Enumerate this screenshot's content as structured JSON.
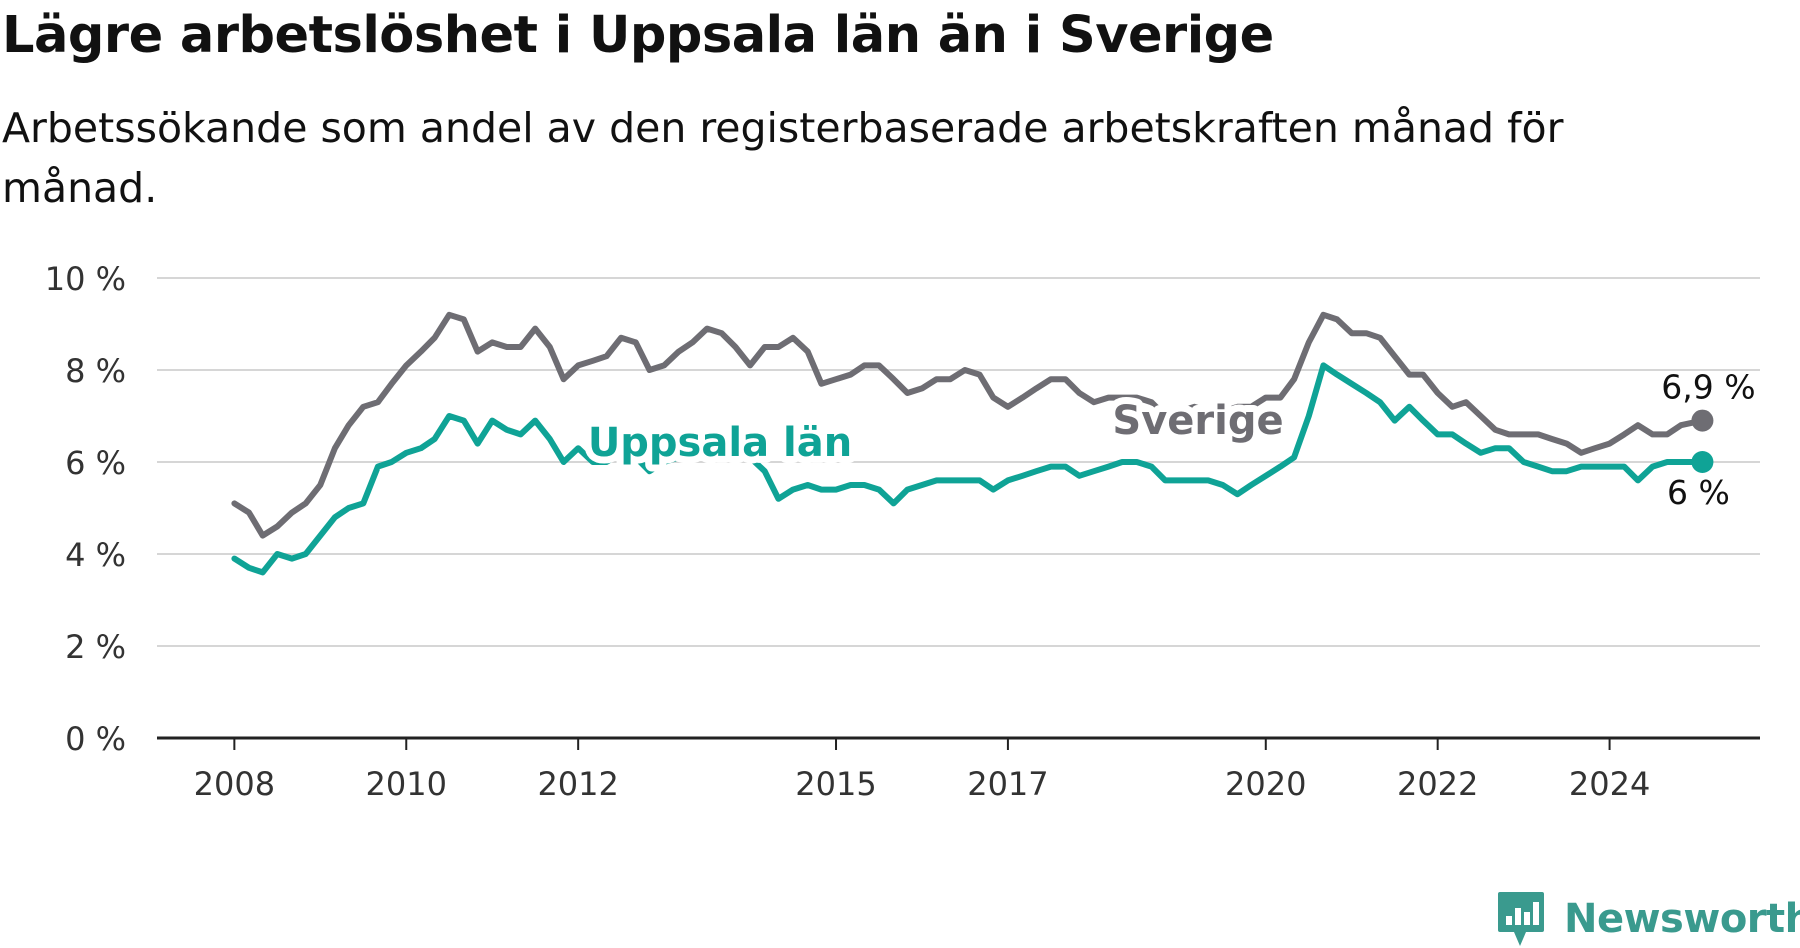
{
  "title": "Lägre arbetslöshet i Uppsala län än i Sverige",
  "subtitle": "Arbetssökande som andel av den registerbaserade arbetskraften månad för månad.",
  "brand": {
    "name": "Newsworthy",
    "icon": "newsworthy-logo-icon"
  },
  "colors": {
    "sverige": "#6e6d73",
    "uppsala": "#0fa396",
    "grid": "#d6d6d6",
    "axis": "#222222"
  },
  "chart_data": {
    "type": "line",
    "y_ticks": [
      "0 %",
      "2 %",
      "4 %",
      "6 %",
      "8 %",
      "10 %"
    ],
    "y_tick_values": [
      0,
      2,
      4,
      6,
      8,
      10
    ],
    "ylim": [
      0,
      10
    ],
    "x_ticks": [
      "2008",
      "2010",
      "2012",
      "2015",
      "2017",
      "2020",
      "2022",
      "2024"
    ],
    "x_tick_values": [
      2008,
      2010,
      2012,
      2015,
      2017,
      2020,
      2022,
      2024
    ],
    "xlim": [
      2007.1,
      2025.75
    ],
    "grid": true,
    "series": [
      {
        "name": "Sverige",
        "end_label": "6,9 %",
        "points": [
          [
            2008.0,
            5.1
          ],
          [
            2008.17,
            4.9
          ],
          [
            2008.33,
            4.4
          ],
          [
            2008.5,
            4.6
          ],
          [
            2008.67,
            4.9
          ],
          [
            2008.83,
            5.1
          ],
          [
            2009.0,
            5.5
          ],
          [
            2009.17,
            6.3
          ],
          [
            2009.33,
            6.8
          ],
          [
            2009.5,
            7.2
          ],
          [
            2009.67,
            7.3
          ],
          [
            2009.83,
            7.7
          ],
          [
            2010.0,
            8.1
          ],
          [
            2010.17,
            8.4
          ],
          [
            2010.33,
            8.7
          ],
          [
            2010.5,
            9.2
          ],
          [
            2010.67,
            9.1
          ],
          [
            2010.83,
            8.4
          ],
          [
            2011.0,
            8.6
          ],
          [
            2011.17,
            8.5
          ],
          [
            2011.33,
            8.5
          ],
          [
            2011.5,
            8.9
          ],
          [
            2011.67,
            8.5
          ],
          [
            2011.83,
            7.8
          ],
          [
            2012.0,
            8.1
          ],
          [
            2012.17,
            8.2
          ],
          [
            2012.33,
            8.3
          ],
          [
            2012.5,
            8.7
          ],
          [
            2012.67,
            8.6
          ],
          [
            2012.83,
            8.0
          ],
          [
            2013.0,
            8.1
          ],
          [
            2013.17,
            8.4
          ],
          [
            2013.33,
            8.6
          ],
          [
            2013.5,
            8.9
          ],
          [
            2013.67,
            8.8
          ],
          [
            2013.83,
            8.5
          ],
          [
            2014.0,
            8.1
          ],
          [
            2014.17,
            8.5
          ],
          [
            2014.33,
            8.5
          ],
          [
            2014.5,
            8.7
          ],
          [
            2014.67,
            8.4
          ],
          [
            2014.83,
            7.7
          ],
          [
            2015.0,
            7.8
          ],
          [
            2015.17,
            7.9
          ],
          [
            2015.33,
            8.1
          ],
          [
            2015.5,
            8.1
          ],
          [
            2015.67,
            7.8
          ],
          [
            2015.83,
            7.5
          ],
          [
            2016.0,
            7.6
          ],
          [
            2016.17,
            7.8
          ],
          [
            2016.33,
            7.8
          ],
          [
            2016.5,
            8.0
          ],
          [
            2016.67,
            7.9
          ],
          [
            2016.83,
            7.4
          ],
          [
            2017.0,
            7.2
          ],
          [
            2017.17,
            7.4
          ],
          [
            2017.33,
            7.6
          ],
          [
            2017.5,
            7.8
          ],
          [
            2017.67,
            7.8
          ],
          [
            2017.83,
            7.5
          ],
          [
            2018.0,
            7.3
          ],
          [
            2018.17,
            7.4
          ],
          [
            2018.33,
            7.4
          ],
          [
            2018.5,
            7.4
          ],
          [
            2018.67,
            7.3
          ],
          [
            2018.83,
            7.0
          ],
          [
            2019.0,
            7.1
          ],
          [
            2019.17,
            7.2
          ],
          [
            2019.33,
            7.1
          ],
          [
            2019.5,
            7.1
          ],
          [
            2019.67,
            7.2
          ],
          [
            2019.83,
            7.2
          ],
          [
            2020.0,
            7.4
          ],
          [
            2020.17,
            7.4
          ],
          [
            2020.33,
            7.8
          ],
          [
            2020.5,
            8.6
          ],
          [
            2020.67,
            9.2
          ],
          [
            2020.83,
            9.1
          ],
          [
            2021.0,
            8.8
          ],
          [
            2021.17,
            8.8
          ],
          [
            2021.33,
            8.7
          ],
          [
            2021.5,
            8.3
          ],
          [
            2021.67,
            7.9
          ],
          [
            2021.83,
            7.9
          ],
          [
            2022.0,
            7.5
          ],
          [
            2022.17,
            7.2
          ],
          [
            2022.33,
            7.3
          ],
          [
            2022.5,
            7.0
          ],
          [
            2022.67,
            6.7
          ],
          [
            2022.83,
            6.6
          ],
          [
            2023.0,
            6.6
          ],
          [
            2023.17,
            6.6
          ],
          [
            2023.33,
            6.5
          ],
          [
            2023.5,
            6.4
          ],
          [
            2023.67,
            6.2
          ],
          [
            2023.83,
            6.3
          ],
          [
            2024.0,
            6.4
          ],
          [
            2024.17,
            6.6
          ],
          [
            2024.33,
            6.8
          ],
          [
            2024.5,
            6.6
          ],
          [
            2024.67,
            6.6
          ],
          [
            2024.83,
            6.8
          ],
          [
            2025.08,
            6.9
          ]
        ]
      },
      {
        "name": "Uppsala län",
        "end_label": "6 %",
        "points": [
          [
            2008.0,
            3.9
          ],
          [
            2008.17,
            3.7
          ],
          [
            2008.33,
            3.6
          ],
          [
            2008.5,
            4.0
          ],
          [
            2008.67,
            3.9
          ],
          [
            2008.83,
            4.0
          ],
          [
            2009.0,
            4.4
          ],
          [
            2009.17,
            4.8
          ],
          [
            2009.33,
            5.0
          ],
          [
            2009.5,
            5.1
          ],
          [
            2009.67,
            5.9
          ],
          [
            2009.83,
            6.0
          ],
          [
            2010.0,
            6.2
          ],
          [
            2010.17,
            6.3
          ],
          [
            2010.33,
            6.5
          ],
          [
            2010.5,
            7.0
          ],
          [
            2010.67,
            6.9
          ],
          [
            2010.83,
            6.4
          ],
          [
            2011.0,
            6.9
          ],
          [
            2011.17,
            6.7
          ],
          [
            2011.33,
            6.6
          ],
          [
            2011.5,
            6.9
          ],
          [
            2011.67,
            6.5
          ],
          [
            2011.83,
            6.0
          ],
          [
            2012.0,
            6.3
          ],
          [
            2012.17,
            6.0
          ],
          [
            2012.33,
            6.0
          ],
          [
            2012.5,
            6.2
          ],
          [
            2012.67,
            6.1
          ],
          [
            2012.83,
            5.8
          ],
          [
            2013.0,
            6.0
          ],
          [
            2013.17,
            6.1
          ],
          [
            2013.33,
            6.2
          ],
          [
            2013.5,
            6.3
          ],
          [
            2013.67,
            6.3
          ],
          [
            2013.83,
            6.2
          ],
          [
            2014.0,
            6.1
          ],
          [
            2014.17,
            5.8
          ],
          [
            2014.33,
            5.2
          ],
          [
            2014.5,
            5.4
          ],
          [
            2014.67,
            5.5
          ],
          [
            2014.83,
            5.4
          ],
          [
            2015.0,
            5.4
          ],
          [
            2015.17,
            5.5
          ],
          [
            2015.33,
            5.5
          ],
          [
            2015.5,
            5.4
          ],
          [
            2015.67,
            5.1
          ],
          [
            2015.83,
            5.4
          ],
          [
            2016.0,
            5.5
          ],
          [
            2016.17,
            5.6
          ],
          [
            2016.33,
            5.6
          ],
          [
            2016.5,
            5.6
          ],
          [
            2016.67,
            5.6
          ],
          [
            2016.83,
            5.4
          ],
          [
            2017.0,
            5.6
          ],
          [
            2017.17,
            5.7
          ],
          [
            2017.33,
            5.8
          ],
          [
            2017.5,
            5.9
          ],
          [
            2017.67,
            5.9
          ],
          [
            2017.83,
            5.7
          ],
          [
            2018.0,
            5.8
          ],
          [
            2018.17,
            5.9
          ],
          [
            2018.33,
            6.0
          ],
          [
            2018.5,
            6.0
          ],
          [
            2018.67,
            5.9
          ],
          [
            2018.83,
            5.6
          ],
          [
            2019.0,
            5.6
          ],
          [
            2019.17,
            5.6
          ],
          [
            2019.33,
            5.6
          ],
          [
            2019.5,
            5.5
          ],
          [
            2019.67,
            5.3
          ],
          [
            2019.83,
            5.5
          ],
          [
            2020.0,
            5.7
          ],
          [
            2020.17,
            5.9
          ],
          [
            2020.33,
            6.1
          ],
          [
            2020.5,
            7.0
          ],
          [
            2020.67,
            8.1
          ],
          [
            2020.83,
            7.9
          ],
          [
            2021.0,
            7.7
          ],
          [
            2021.17,
            7.5
          ],
          [
            2021.33,
            7.3
          ],
          [
            2021.5,
            6.9
          ],
          [
            2021.67,
            7.2
          ],
          [
            2021.83,
            6.9
          ],
          [
            2022.0,
            6.6
          ],
          [
            2022.17,
            6.6
          ],
          [
            2022.33,
            6.4
          ],
          [
            2022.5,
            6.2
          ],
          [
            2022.67,
            6.3
          ],
          [
            2022.83,
            6.3
          ],
          [
            2023.0,
            6.0
          ],
          [
            2023.17,
            5.9
          ],
          [
            2023.33,
            5.8
          ],
          [
            2023.5,
            5.8
          ],
          [
            2023.67,
            5.9
          ],
          [
            2023.83,
            5.9
          ],
          [
            2024.0,
            5.9
          ],
          [
            2024.17,
            5.9
          ],
          [
            2024.33,
            5.6
          ],
          [
            2024.5,
            5.9
          ],
          [
            2024.67,
            6.0
          ],
          [
            2024.83,
            6.0
          ],
          [
            2025.08,
            6.0
          ]
        ]
      }
    ]
  }
}
